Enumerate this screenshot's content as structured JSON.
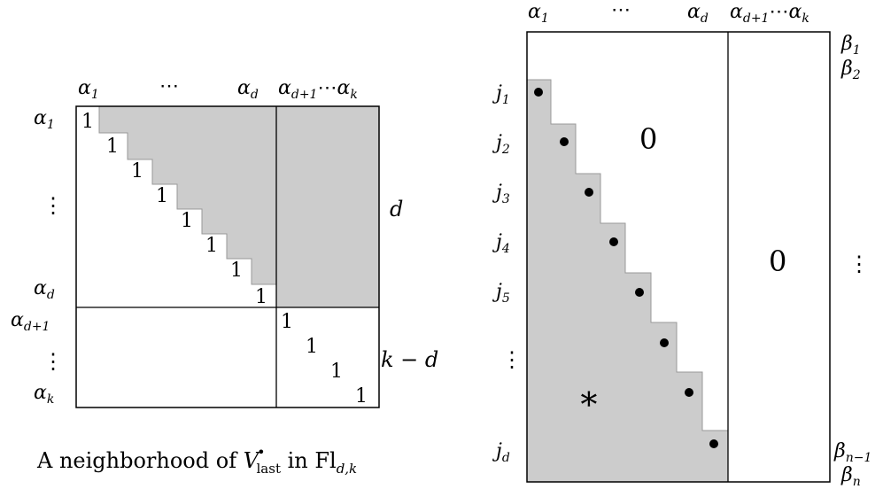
{
  "left_matrix": {
    "col_labels": {
      "a1": "α",
      "a1_sub": "1",
      "dots": "⋯",
      "ad": "α",
      "ad_sub": "d",
      "adk": "α",
      "adk_sub": "d+1",
      "adk_dots": "⋯",
      "ak": "α",
      "ak_sub": "k"
    },
    "row_labels": {
      "a1": "α",
      "a1_sub": "1",
      "vdots": "⋮",
      "ad": "α",
      "ad_sub": "d",
      "ad1": "α",
      "ad1_sub": "d+1",
      "vdots2": "⋮",
      "ak": "α",
      "ak_sub": "k"
    },
    "diagonal_top": [
      "1",
      "1",
      "1",
      "1",
      "1",
      "1",
      "1",
      "1"
    ],
    "diagonal_bottom": [
      "1",
      "1",
      "1",
      "1"
    ],
    "side_label_d": "d",
    "side_label_kd": "k − d",
    "colors": {
      "shade": "#cccccc",
      "line": "#000000"
    }
  },
  "caption": {
    "prefix": "A neighborhood of ",
    "V": "V",
    "sup": "•",
    "sub": "last",
    "mid": " in Fl",
    "fl_sub": "d,k"
  },
  "right_matrix": {
    "col_labels": {
      "a1": "α",
      "a1_sub": "1",
      "dots": "⋯",
      "ad": "α",
      "ad_sub": "d",
      "adk": "α",
      "adk_sub": "d+1",
      "adk_dots": "⋯",
      "ak": "α",
      "ak_sub": "k"
    },
    "row_labels": [
      {
        "base": "j",
        "sub": "1"
      },
      {
        "base": "j",
        "sub": "2"
      },
      {
        "base": "j",
        "sub": "3"
      },
      {
        "base": "j",
        "sub": "4"
      },
      {
        "base": "j",
        "sub": "5"
      },
      {
        "base": "⋮",
        "sub": ""
      },
      {
        "base": "j",
        "sub": "d"
      }
    ],
    "beta_labels": {
      "b1": "β",
      "b1_sub": "1",
      "b2": "β",
      "b2_sub": "2",
      "vdots": "⋮",
      "bn1": "β",
      "bn1_sub": "n−1",
      "bn": "β",
      "bn_sub": "n"
    },
    "zero_upper": "0",
    "zero_right": "0",
    "star": "∗",
    "colors": {
      "shade": "#cccccc",
      "line": "#000000",
      "dot": "#000000"
    }
  }
}
